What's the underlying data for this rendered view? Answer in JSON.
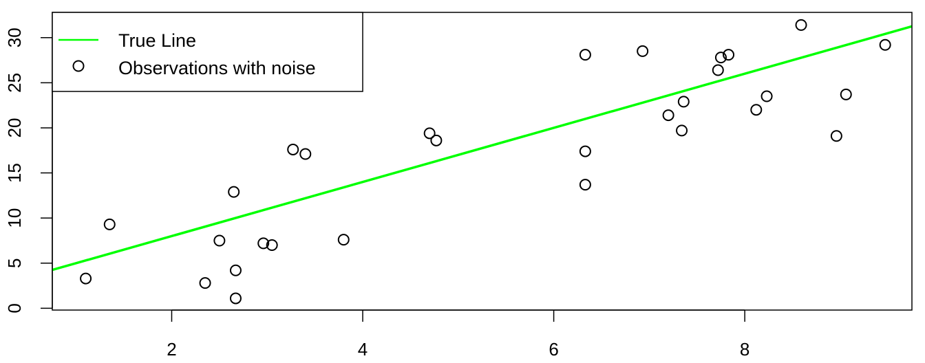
{
  "chart_data": {
    "type": "scatter",
    "title": "",
    "xlabel": "",
    "ylabel": "",
    "xlim": [
      0.75,
      9.75
    ],
    "ylim": [
      -0.2,
      32.8
    ],
    "x_ticks": [
      2,
      4,
      6,
      8
    ],
    "y_ticks": [
      0,
      5,
      10,
      15,
      20,
      25,
      30
    ],
    "x_tick_labels": [
      "2",
      "4",
      "6",
      "8"
    ],
    "y_tick_labels": [
      "0",
      "5",
      "10",
      "15",
      "20",
      "25",
      "30"
    ],
    "grid": false,
    "legend": {
      "position": "top-left",
      "entries": [
        "True Line",
        "Observations with noise"
      ]
    },
    "series": [
      {
        "name": "True Line",
        "kind": "line",
        "color": "#00ff00",
        "x": [
          0.75,
          9.75
        ],
        "y": [
          4.25,
          31.25
        ]
      },
      {
        "name": "Observations with noise",
        "kind": "points",
        "color": "#000000",
        "marker": "open-circle",
        "x": [
          1.1,
          1.35,
          2.35,
          2.5,
          2.65,
          2.67,
          2.67,
          2.96,
          3.05,
          3.27,
          3.4,
          3.8,
          4.7,
          4.77,
          6.33,
          6.33,
          6.33,
          6.93,
          7.2,
          7.34,
          7.36,
          7.72,
          7.75,
          7.83,
          8.12,
          8.23,
          8.59,
          8.96,
          9.06,
          9.47
        ],
        "y": [
          3.3,
          9.3,
          2.8,
          7.5,
          12.9,
          4.2,
          1.1,
          7.2,
          7.0,
          17.6,
          17.1,
          7.6,
          19.4,
          18.6,
          28.1,
          17.4,
          13.7,
          28.5,
          21.4,
          19.7,
          22.9,
          26.4,
          27.8,
          28.1,
          22.0,
          23.5,
          31.4,
          19.1,
          23.7,
          29.2
        ]
      }
    ]
  }
}
